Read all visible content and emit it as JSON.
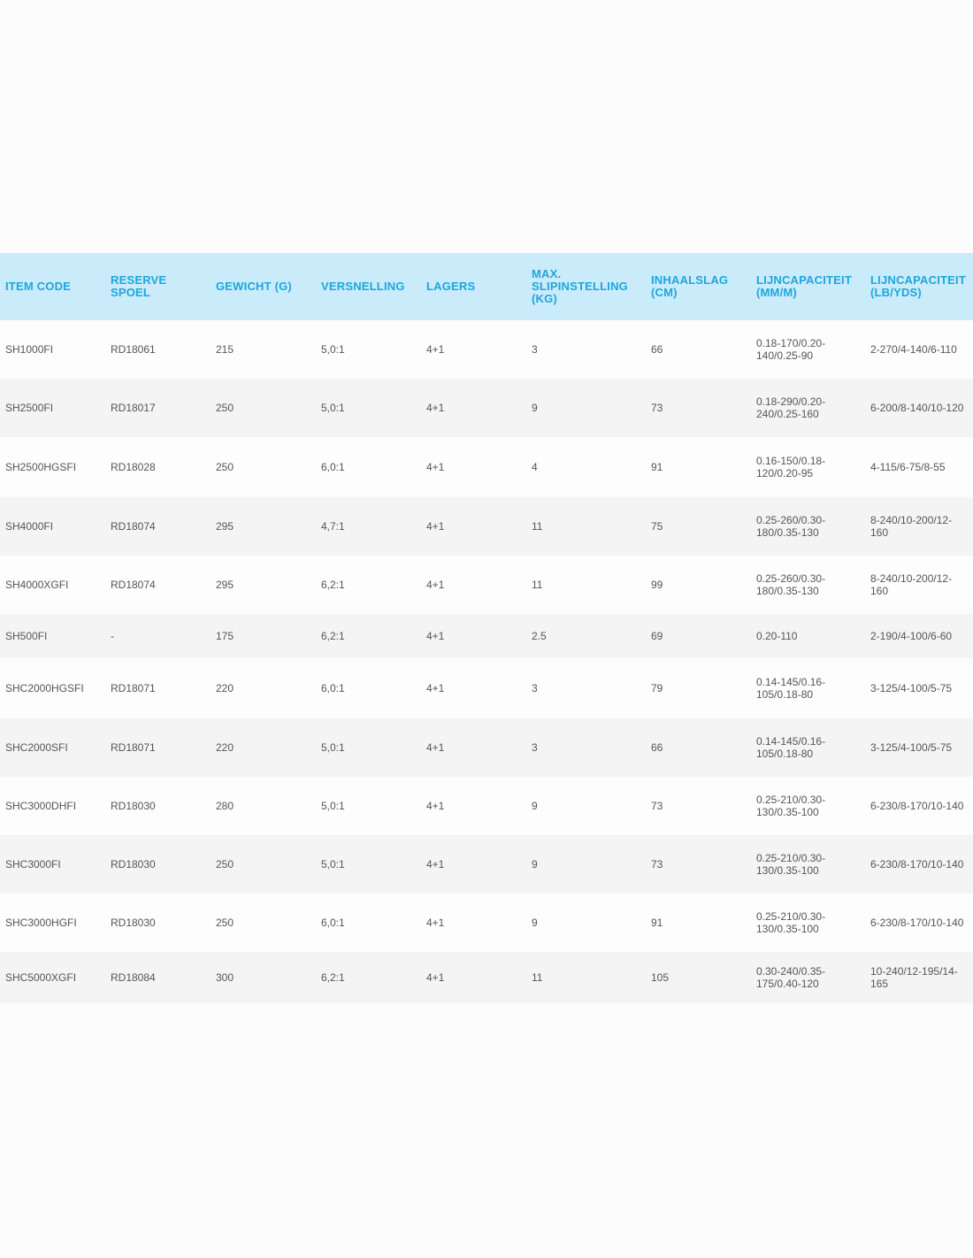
{
  "table": {
    "headers": [
      "ITEM CODE",
      "RESERVE\nSPOEL",
      "GEWICHT (G)",
      "VERSNELLING",
      "LAGERS",
      "MAX.\nSLIPINSTELLING\n(KG)",
      "INHAALSLAG\n(CM)",
      "LIJNCAPACITEIT\n(MM/M)",
      "LIJNCAPACITEIT\n(LB/YDS)"
    ],
    "rows": [
      [
        "SH1000FI",
        "RD18061",
        "215",
        "5,0:1",
        "4+1",
        "3",
        "66",
        "0.18-170/0.20-140/0.25-90",
        "2-270/4-140/6-110"
      ],
      [
        "SH2500FI",
        "RD18017",
        "250",
        "5,0:1",
        "4+1",
        "9",
        "73",
        "0.18-290/0.20-240/0.25-160",
        "6-200/8-140/10-120"
      ],
      [
        "SH2500HGSFI",
        "RD18028",
        "250",
        "6,0:1",
        "4+1",
        "4",
        "91",
        "0.16-150/0.18-120/0.20-95",
        "4-115/6-75/8-55"
      ],
      [
        "SH4000FI",
        "RD18074",
        "295",
        "4,7:1",
        "4+1",
        "11",
        "75",
        "0.25-260/0.30-180/0.35-130",
        "8-240/10-200/12-160"
      ],
      [
        "SH4000XGFI",
        "RD18074",
        "295",
        "6,2:1",
        "4+1",
        "11",
        "99",
        "0.25-260/0.30-180/0.35-130",
        "8-240/10-200/12-160"
      ],
      [
        "SH500FI",
        "-",
        "175",
        "6,2:1",
        "4+1",
        "2.5",
        "69",
        "0.20-110",
        "2-190/4-100/6-60"
      ],
      [
        "SHC2000HGSFI",
        "RD18071",
        "220",
        "6,0:1",
        "4+1",
        "3",
        "79",
        "0.14-145/0.16-105/0.18-80",
        "3-125/4-100/5-75"
      ],
      [
        "SHC2000SFI",
        "RD18071",
        "220",
        "5,0:1",
        "4+1",
        "3",
        "66",
        "0.14-145/0.16-105/0.18-80",
        "3-125/4-100/5-75"
      ],
      [
        "SHC3000DHFI",
        "RD18030",
        "280",
        "5,0:1",
        "4+1",
        "9",
        "73",
        "0.25-210/0.30-130/0.35-100",
        "6-230/8-170/10-140"
      ],
      [
        "SHC3000FI",
        "RD18030",
        "250",
        "5,0:1",
        "4+1",
        "9",
        "73",
        "0.25-210/0.30-130/0.35-100",
        "6-230/8-170/10-140"
      ],
      [
        "SHC3000HGFI",
        "RD18030",
        "250",
        "6,0:1",
        "4+1",
        "9",
        "91",
        "0.25-210/0.30-130/0.35-100",
        "6-230/8-170/10-140"
      ],
      [
        "SHC5000XGFI",
        "RD18084",
        "300",
        "6,2:1",
        "4+1",
        "11",
        "105",
        "0.30-240/0.35-175/0.40-120",
        "10-240/12-195/14-165"
      ]
    ]
  },
  "colors": {
    "header_background": "#c9ebfa",
    "header_text": "#1ea6dc",
    "row_odd": "#fdfdfd",
    "row_even": "#f4f4f4",
    "cell_text": "#555555"
  }
}
